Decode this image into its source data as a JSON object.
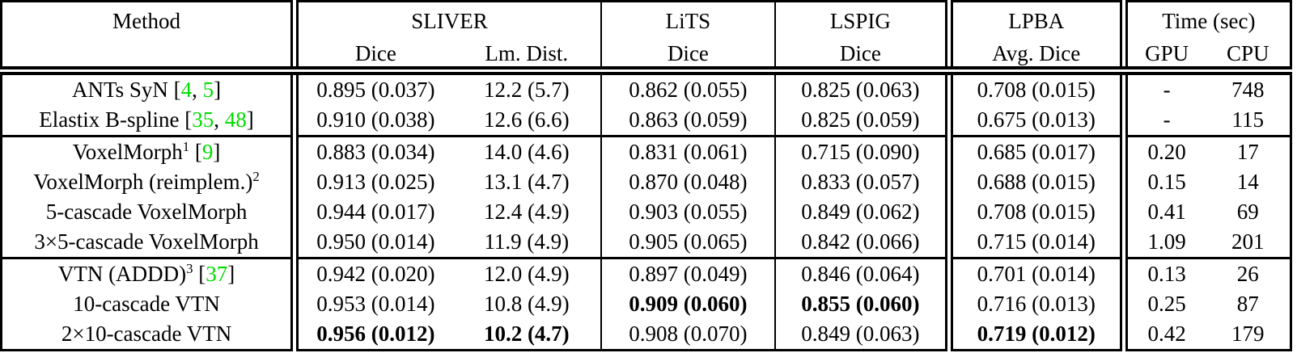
{
  "colors": {
    "citation_green": "#00DC00",
    "border": "#000000",
    "background": "#FFFFFF",
    "text": "#000000"
  },
  "table": {
    "header": {
      "method": "Method",
      "groups": [
        {
          "name": "SLIVER",
          "subs": [
            "Dice",
            "Lm. Dist."
          ]
        },
        {
          "name": "LiTS",
          "subs": [
            "Dice"
          ]
        },
        {
          "name": "LSPIG",
          "subs": [
            "Dice"
          ]
        },
        {
          "name": "LPBA",
          "subs": [
            "Avg. Dice"
          ]
        },
        {
          "name": "Time (sec)",
          "subs": [
            "GPU",
            "CPU"
          ]
        }
      ]
    },
    "row_groups": [
      [
        {
          "method": "ANTs SyN",
          "sup": "",
          "cite": [
            "4",
            "5"
          ],
          "sliver_dice": "0.895 (0.037)",
          "sliver_lm": "12.2 (5.7)",
          "lits": "0.862 (0.055)",
          "lspig": "0.825 (0.063)",
          "lpba": "0.708 (0.015)",
          "gpu": "-",
          "cpu": "748",
          "bold": []
        },
        {
          "method": "Elastix B-spline",
          "sup": "",
          "cite": [
            "35",
            "48"
          ],
          "sliver_dice": "0.910 (0.038)",
          "sliver_lm": "12.6 (6.6)",
          "lits": "0.863 (0.059)",
          "lspig": "0.825 (0.059)",
          "lpba": "0.675 (0.013)",
          "gpu": "-",
          "cpu": "115",
          "bold": []
        }
      ],
      [
        {
          "method": "VoxelMorph",
          "sup": "1",
          "cite": [
            "9"
          ],
          "sliver_dice": "0.883 (0.034)",
          "sliver_lm": "14.0 (4.6)",
          "lits": "0.831 (0.061)",
          "lspig": "0.715 (0.090)",
          "lpba": "0.685 (0.017)",
          "gpu": "0.20",
          "cpu": "17",
          "bold": []
        },
        {
          "method": "VoxelMorph (reimplem.)",
          "sup": "2",
          "cite": null,
          "sliver_dice": "0.913 (0.025)",
          "sliver_lm": "13.1 (4.7)",
          "lits": "0.870 (0.048)",
          "lspig": "0.833 (0.057)",
          "lpba": "0.688 (0.015)",
          "gpu": "0.15",
          "cpu": "14",
          "bold": []
        },
        {
          "method": "5-cascade VoxelMorph",
          "sup": "",
          "cite": null,
          "sliver_dice": "0.944 (0.017)",
          "sliver_lm": "12.4 (4.9)",
          "lits": "0.903 (0.055)",
          "lspig": "0.849 (0.062)",
          "lpba": "0.708 (0.015)",
          "gpu": "0.41",
          "cpu": "69",
          "bold": []
        },
        {
          "method": "3×5-cascade VoxelMorph",
          "sup": "",
          "cite": null,
          "sliver_dice": "0.950 (0.014)",
          "sliver_lm": "11.9 (4.9)",
          "lits": "0.905 (0.065)",
          "lspig": "0.842 (0.066)",
          "lpba": "0.715 (0.014)",
          "gpu": "1.09",
          "cpu": "201",
          "bold": []
        }
      ],
      [
        {
          "method": "VTN (ADDD)",
          "sup": "3",
          "cite": [
            "37"
          ],
          "sliver_dice": "0.942 (0.020)",
          "sliver_lm": "12.0 (4.9)",
          "lits": "0.897 (0.049)",
          "lspig": "0.846 (0.064)",
          "lpba": "0.701 (0.014)",
          "gpu": "0.13",
          "cpu": "26",
          "bold": []
        },
        {
          "method": "10-cascade VTN",
          "sup": "",
          "cite": null,
          "sliver_dice": "0.953 (0.014)",
          "sliver_lm": "10.8 (4.9)",
          "lits": "0.909 (0.060)",
          "lspig": "0.855 (0.060)",
          "lpba": "0.716 (0.013)",
          "gpu": "0.25",
          "cpu": "87",
          "bold": [
            "lits",
            "lspig"
          ]
        },
        {
          "method": "2×10-cascade VTN",
          "sup": "",
          "cite": null,
          "sliver_dice": "0.956 (0.012)",
          "sliver_lm": "10.2 (4.7)",
          "lits": "0.908 (0.070)",
          "lspig": "0.849 (0.063)",
          "lpba": "0.719 (0.012)",
          "gpu": "0.42",
          "cpu": "179",
          "bold": [
            "sliver_dice",
            "sliver_lm",
            "lpba"
          ]
        }
      ]
    ]
  }
}
